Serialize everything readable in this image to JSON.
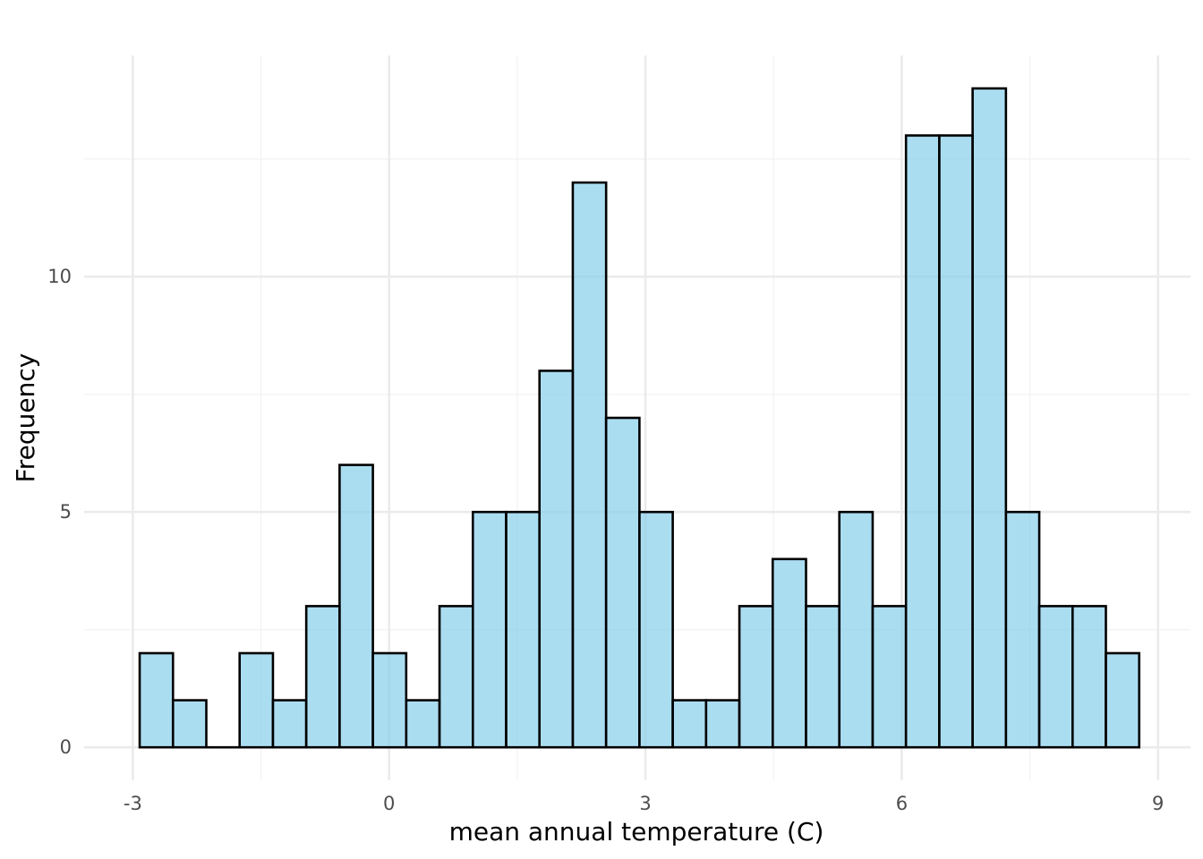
{
  "chart_data": {
    "type": "bar",
    "title": "",
    "xlabel": "mean annual temperature (C)",
    "ylabel": "Frequency",
    "x_ticks": [
      -3,
      0,
      3,
      6,
      9
    ],
    "x_tick_labels": [
      "-3",
      "0",
      "3",
      "6",
      "9"
    ],
    "y_ticks": [
      0,
      5,
      10
    ],
    "y_tick_labels": [
      "0",
      "5",
      "10"
    ],
    "xlim": [
      -3.57,
      9.38
    ],
    "ylim": [
      -0.7,
      14.7
    ],
    "grid": true,
    "bins": [
      {
        "x0": -2.92,
        "x1": -2.53,
        "count": 2
      },
      {
        "x0": -2.53,
        "x1": -2.14,
        "count": 1
      },
      {
        "x0": -2.14,
        "x1": -1.75,
        "count": 0
      },
      {
        "x0": -1.75,
        "x1": -1.36,
        "count": 2
      },
      {
        "x0": -1.36,
        "x1": -0.97,
        "count": 1
      },
      {
        "x0": -0.97,
        "x1": -0.58,
        "count": 3
      },
      {
        "x0": -0.58,
        "x1": -0.19,
        "count": 6
      },
      {
        "x0": -0.19,
        "x1": 0.2,
        "count": 2
      },
      {
        "x0": 0.2,
        "x1": 0.59,
        "count": 1
      },
      {
        "x0": 0.59,
        "x1": 0.98,
        "count": 3
      },
      {
        "x0": 0.98,
        "x1": 1.37,
        "count": 5
      },
      {
        "x0": 1.37,
        "x1": 1.76,
        "count": 5
      },
      {
        "x0": 1.76,
        "x1": 2.15,
        "count": 8
      },
      {
        "x0": 2.15,
        "x1": 2.54,
        "count": 12
      },
      {
        "x0": 2.54,
        "x1": 2.93,
        "count": 7
      },
      {
        "x0": 2.93,
        "x1": 3.32,
        "count": 5
      },
      {
        "x0": 3.32,
        "x1": 3.71,
        "count": 1
      },
      {
        "x0": 3.71,
        "x1": 4.1,
        "count": 1
      },
      {
        "x0": 4.1,
        "x1": 4.49,
        "count": 3
      },
      {
        "x0": 4.49,
        "x1": 4.88,
        "count": 4
      },
      {
        "x0": 4.88,
        "x1": 5.27,
        "count": 3
      },
      {
        "x0": 5.27,
        "x1": 5.66,
        "count": 5
      },
      {
        "x0": 5.66,
        "x1": 6.05,
        "count": 3
      },
      {
        "x0": 6.05,
        "x1": 6.44,
        "count": 13
      },
      {
        "x0": 6.44,
        "x1": 6.83,
        "count": 13
      },
      {
        "x0": 6.83,
        "x1": 7.22,
        "count": 14
      },
      {
        "x0": 7.22,
        "x1": 7.61,
        "count": 5
      },
      {
        "x0": 7.61,
        "x1": 8.0,
        "count": 3
      },
      {
        "x0": 8.0,
        "x1": 8.39,
        "count": 3
      },
      {
        "x0": 8.39,
        "x1": 8.78,
        "count": 2
      }
    ],
    "colors": {
      "bar_fill": "#87CEEB",
      "bar_stroke": "#000000",
      "grid_major": "#EBEBEB",
      "grid_minor": "#F3F3F3"
    }
  }
}
